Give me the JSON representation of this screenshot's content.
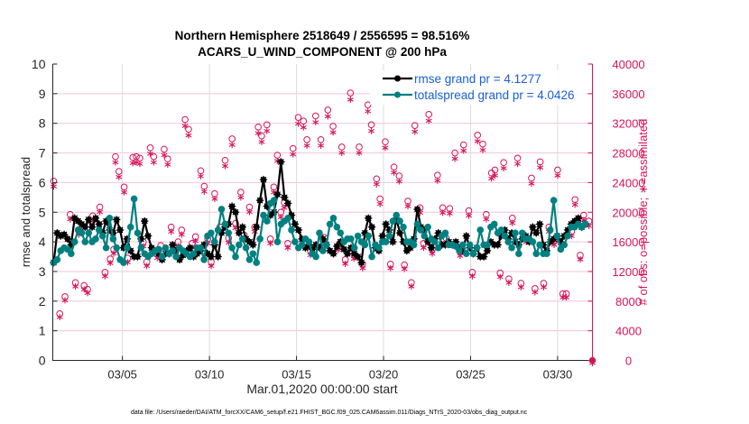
{
  "chart_data": {
    "type": "line",
    "title": [
      "Northern Hemisphere 2518649 / 2556595 = 98.516%",
      "ACARS_U_WIND_COMPONENT @ 200 hPa"
    ],
    "xlabel": "Mar.01,2020 00:00:00 start",
    "ylabel_left": "rmse and totalspread",
    "ylabel_right": "# of obs: o=possible; ∗=assimilated",
    "footnote": "data file: /Users/raeder/DAI/ATM_forcXX/CAM6_setup/f.e21.FHIST_BGC.f09_025.CAM6assim.011/Diags_NTrS_2020-03/obs_diag_output.nc",
    "xlim_days": [
      0,
      31
    ],
    "x_ticks": [
      {
        "day": 4,
        "label": "03/05"
      },
      {
        "day": 9,
        "label": "03/10"
      },
      {
        "day": 14,
        "label": "03/15"
      },
      {
        "day": 19,
        "label": "03/20"
      },
      {
        "day": 24,
        "label": "03/25"
      },
      {
        "day": 29,
        "label": "03/30"
      }
    ],
    "ylim_left": [
      0,
      10
    ],
    "y_ticks_left": [
      "0",
      "1",
      "2",
      "3",
      "4",
      "5",
      "6",
      "7",
      "8",
      "9",
      "10"
    ],
    "ylim_right": [
      0,
      40000
    ],
    "y_ticks_right": [
      "0",
      "4000",
      "8000",
      "12000",
      "16000",
      "20000",
      "24000",
      "28000",
      "32000",
      "36000",
      "40000"
    ],
    "grid": true,
    "legend": {
      "placement": "top-right",
      "entries": [
        {
          "label": "rmse grand pr = 4.1277",
          "color": "#000000"
        },
        {
          "label": "totalspread grand pr = 4.0426",
          "color": "#008080"
        }
      ]
    },
    "time_step_days": 0.25,
    "series": [
      {
        "name": "rmse",
        "color": "#000000",
        "values": [
          3.3,
          4.3,
          4.2,
          4.25,
          4.1,
          3.9,
          4.8,
          4.7,
          4.6,
          4.5,
          4.75,
          4.5,
          4.8,
          4.6,
          4.3,
          4.7,
          4.4,
          4.3,
          4.75,
          4.4,
          3.8,
          4.1,
          3.7,
          3.5,
          3.5,
          4.1,
          4.7,
          4.2,
          3.8,
          3.7,
          3.6,
          3.4,
          3.6,
          3.6,
          3.9,
          3.7,
          3.4,
          3.55,
          3.7,
          3.8,
          3.5,
          3.6,
          3.7,
          3.9,
          3.6,
          3.5,
          3.9,
          3.5,
          4.3,
          4.5,
          4.6,
          5.2,
          5.0,
          4.3,
          4.5,
          4.1,
          4.0,
          3.9,
          4.5,
          5.4,
          6.1,
          5.2,
          4.9,
          5.0,
          5.6,
          6.7,
          5.5,
          5.3,
          4.9,
          4.6,
          4.4,
          4.1,
          3.8,
          3.9,
          3.75,
          3.9,
          3.8,
          4.1,
          3.9,
          3.7,
          3.6,
          3.85,
          4.0,
          3.75,
          3.6,
          3.8,
          3.6,
          3.5,
          3.3,
          4.3,
          4.8,
          4.5,
          3.8,
          3.7,
          4.2,
          4.6,
          4.4,
          4.0,
          4.8,
          4.3,
          4.0,
          3.7,
          3.8,
          4.1,
          5.1,
          4.5,
          4.4,
          4.0,
          3.8,
          4.1,
          4.3,
          3.9,
          3.9,
          4.0,
          3.9,
          4.0,
          3.8,
          3.7,
          4.2,
          3.8,
          3.6,
          3.8,
          3.5,
          3.5,
          3.7,
          4.0,
          3.9,
          3.9,
          4.2,
          4.4,
          4.1,
          4.3,
          4.0,
          3.9,
          4.1,
          4.2,
          4.0,
          4.5,
          4.3,
          4.6,
          3.9,
          3.7,
          4.0,
          4.1,
          4.2,
          4.0,
          4.2,
          4.4,
          4.6,
          4.7,
          4.8,
          4.5,
          4.6
        ]
      },
      {
        "name": "totalspread",
        "color": "#008080",
        "values": [
          3.3,
          3.4,
          3.7,
          3.8,
          3.75,
          3.6,
          4.0,
          4.4,
          4.3,
          4.0,
          4.3,
          4.0,
          4.1,
          4.4,
          4.2,
          3.8,
          4.8,
          4.1,
          3.8,
          3.4,
          3.3,
          3.8,
          4.5,
          5.45,
          4.3,
          3.8,
          3.6,
          3.5,
          3.6,
          3.7,
          3.75,
          3.5,
          3.8,
          3.6,
          3.7,
          3.5,
          3.8,
          3.7,
          3.6,
          3.5,
          3.6,
          3.8,
          3.8,
          3.4,
          4.2,
          4.3,
          4.0,
          4.4,
          5.1,
          4.6,
          4.3,
          3.8,
          3.5,
          3.9,
          4.1,
          3.8,
          3.4,
          3.6,
          3.3,
          4.1,
          4.9,
          4.7,
          5.3,
          5.4,
          4.0,
          4.6,
          4.7,
          4.8,
          4.4,
          4.0,
          3.8,
          3.9,
          4.1,
          4.0,
          3.6,
          3.5,
          4.3,
          3.7,
          3.9,
          4.6,
          4.8,
          4.5,
          4.3,
          4.0,
          4.1,
          4.1,
          3.8,
          4.2,
          4.0,
          3.9,
          4.2,
          3.5,
          3.9,
          3.8,
          4.0,
          4.0,
          4.2,
          4.7,
          4.9,
          4.7,
          4.5,
          4.0,
          4.0,
          3.9,
          4.6,
          4.4,
          4.2,
          4.5,
          4.1,
          4.0,
          3.8,
          4.2,
          4.3,
          3.9,
          3.9,
          3.85,
          3.7,
          3.9,
          3.6,
          3.9,
          3.6,
          3.8,
          4.4,
          3.9,
          3.9,
          4.5,
          4.6,
          4.3,
          4.4,
          4.2,
          4.0,
          3.8,
          4.3,
          3.6,
          4.3,
          4.1,
          4.1,
          4.0,
          3.6,
          3.9,
          3.6,
          3.6,
          4.4,
          5.4,
          4.2,
          3.75,
          3.9,
          4.2,
          4.5,
          4.5,
          4.6,
          4.5,
          4.6
        ]
      },
      {
        "name": "obs possible (o)",
        "axis": "right",
        "color": "#d6145a",
        "points": [
          [
            0.05,
            24200
          ],
          [
            0.4,
            6300
          ],
          [
            0.7,
            8600
          ],
          [
            1.0,
            19700
          ],
          [
            1.3,
            10500
          ],
          [
            1.5,
            17600
          ],
          [
            1.8,
            10100
          ],
          [
            2.0,
            9600
          ],
          [
            2.3,
            19500
          ],
          [
            2.7,
            20700
          ],
          [
            3.0,
            11900
          ],
          [
            3.3,
            13700
          ],
          [
            3.5,
            15000
          ],
          [
            3.6,
            27500
          ],
          [
            3.8,
            25500
          ],
          [
            4.1,
            23400
          ],
          [
            4.3,
            13800
          ],
          [
            4.6,
            27400
          ],
          [
            4.8,
            27500
          ],
          [
            5.0,
            27300
          ],
          [
            5.2,
            16000
          ],
          [
            5.4,
            13300
          ],
          [
            5.6,
            28700
          ],
          [
            5.8,
            27500
          ],
          [
            6.0,
            14400
          ],
          [
            6.2,
            15500
          ],
          [
            6.4,
            28500
          ],
          [
            6.6,
            27200
          ],
          [
            6.8,
            18000
          ],
          [
            7.0,
            15100
          ],
          [
            7.2,
            16000
          ],
          [
            7.4,
            17600
          ],
          [
            7.6,
            32500
          ],
          [
            7.8,
            31200
          ],
          [
            8.0,
            15800
          ],
          [
            8.2,
            16700
          ],
          [
            8.5,
            25600
          ],
          [
            8.7,
            23500
          ],
          [
            8.9,
            16400
          ],
          [
            9.1,
            13300
          ],
          [
            9.3,
            22500
          ],
          [
            9.6,
            18000
          ],
          [
            9.9,
            27000
          ],
          [
            10.1,
            16500
          ],
          [
            10.3,
            29900
          ],
          [
            10.5,
            18500
          ],
          [
            10.8,
            22700
          ],
          [
            11.0,
            16900
          ],
          [
            11.3,
            20700
          ],
          [
            11.6,
            18000
          ],
          [
            11.8,
            31500
          ],
          [
            12.0,
            30300
          ],
          [
            12.3,
            31800
          ],
          [
            12.5,
            16400
          ],
          [
            12.7,
            23400
          ],
          [
            12.9,
            27700
          ],
          [
            13.1,
            20000
          ],
          [
            13.3,
            21300
          ],
          [
            13.5,
            15800
          ],
          [
            13.8,
            28600
          ],
          [
            14.1,
            32800
          ],
          [
            14.4,
            32300
          ],
          [
            14.6,
            29800
          ],
          [
            14.8,
            14800
          ],
          [
            15.1,
            33000
          ],
          [
            15.4,
            29800
          ],
          [
            15.6,
            16600
          ],
          [
            15.8,
            33800
          ],
          [
            16.1,
            31600
          ],
          [
            16.4,
            15500
          ],
          [
            16.6,
            28800
          ],
          [
            16.8,
            13600
          ],
          [
            17.1,
            36100
          ],
          [
            17.3,
            14300
          ],
          [
            17.6,
            28800
          ],
          [
            17.8,
            13000
          ],
          [
            18.1,
            34500
          ],
          [
            18.3,
            31800
          ],
          [
            18.6,
            24500
          ],
          [
            18.8,
            21800
          ],
          [
            19.1,
            29500
          ],
          [
            19.4,
            13000
          ],
          [
            19.6,
            26100
          ],
          [
            19.9,
            24900
          ],
          [
            20.2,
            12900
          ],
          [
            20.4,
            21500
          ],
          [
            20.6,
            10500
          ],
          [
            20.8,
            31700
          ],
          [
            21.1,
            20600
          ],
          [
            21.3,
            15800
          ],
          [
            21.6,
            33200
          ],
          [
            21.8,
            15000
          ],
          [
            22.1,
            25000
          ],
          [
            22.4,
            20600
          ],
          [
            22.6,
            16500
          ],
          [
            22.8,
            20500
          ],
          [
            23.1,
            28000
          ],
          [
            23.4,
            14700
          ],
          [
            23.6,
            29100
          ],
          [
            23.9,
            20200
          ],
          [
            24.1,
            11900
          ],
          [
            24.4,
            30400
          ],
          [
            24.7,
            29200
          ],
          [
            24.9,
            19700
          ],
          [
            25.2,
            25300
          ],
          [
            25.4,
            25700
          ],
          [
            25.7,
            11800
          ],
          [
            25.9,
            26700
          ],
          [
            26.2,
            11000
          ],
          [
            26.4,
            19200
          ],
          [
            26.7,
            27300
          ],
          [
            26.9,
            10400
          ],
          [
            27.2,
            16600
          ],
          [
            27.5,
            24600
          ],
          [
            27.7,
            9700
          ],
          [
            28.0,
            26800
          ],
          [
            28.2,
            10400
          ],
          [
            28.5,
            18000
          ],
          [
            28.8,
            16200
          ],
          [
            29.0,
            25700
          ],
          [
            29.3,
            9000
          ],
          [
            29.5,
            9000
          ],
          [
            29.8,
            17400
          ],
          [
            30.0,
            21700
          ],
          [
            30.3,
            14200
          ],
          [
            30.5,
            19600
          ],
          [
            30.8,
            18800
          ],
          [
            31.0,
            0
          ]
        ]
      },
      {
        "name": "obs assimilated (*)",
        "axis": "right",
        "color": "#d6145a",
        "points_note": "assimilated counts plotted just below possible counts (98.5% ratio)"
      }
    ]
  }
}
